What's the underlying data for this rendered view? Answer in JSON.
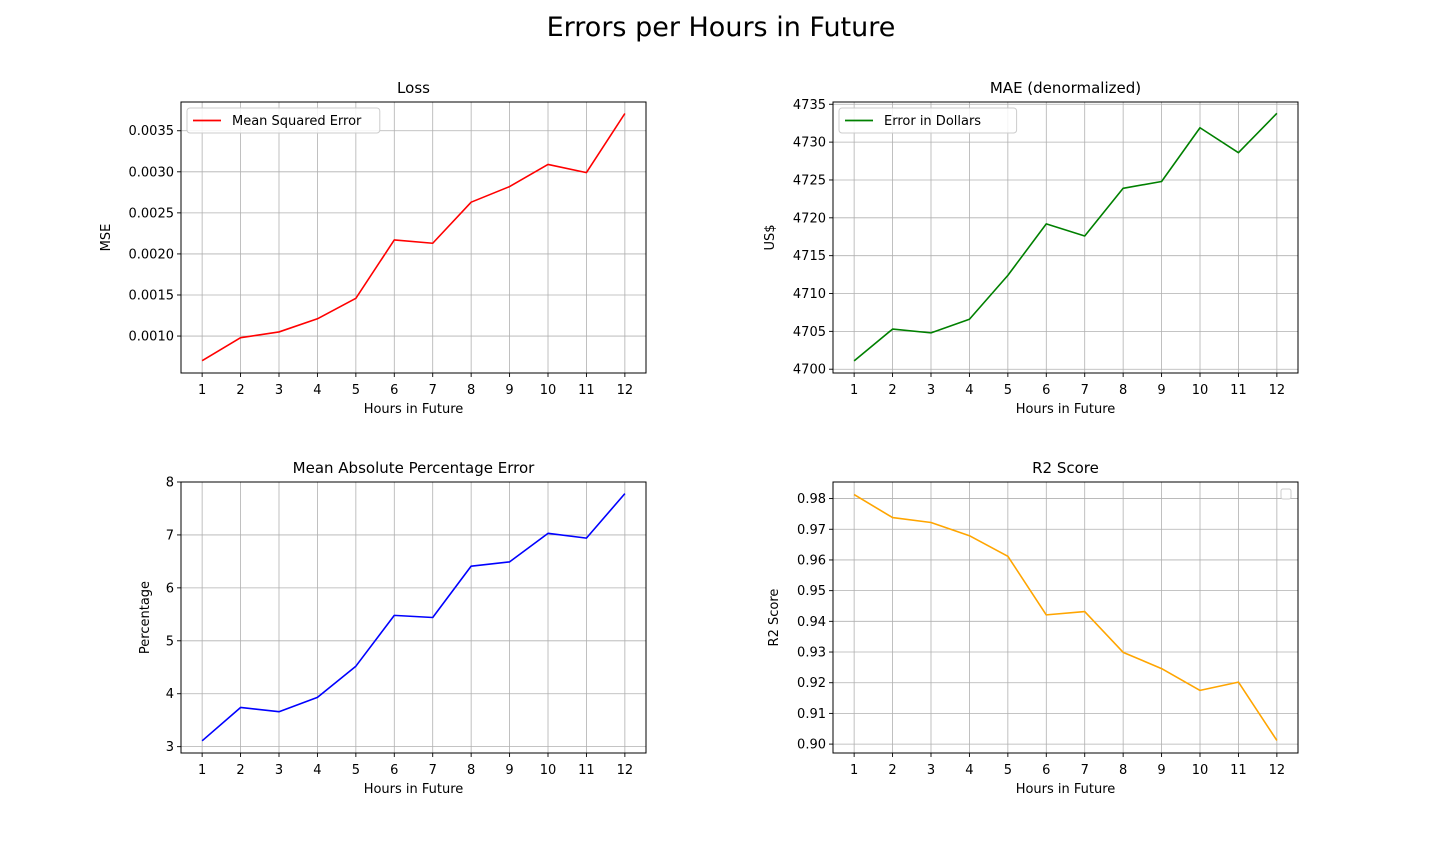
{
  "figure": {
    "title": "Errors per Hours in Future"
  },
  "chart_data": [
    {
      "type": "line",
      "title": "Loss",
      "xlabel": "Hours in Future",
      "ylabel": "MSE",
      "x": [
        1,
        2,
        3,
        4,
        5,
        6,
        7,
        8,
        9,
        10,
        11,
        12
      ],
      "xlim": [
        0.45,
        12.55
      ],
      "ylim": [
        0.00055,
        0.00385
      ],
      "yticks": [
        0.001,
        0.0015,
        0.002,
        0.0025,
        0.003,
        0.0035
      ],
      "ytick_labels": [
        "0.0010",
        "0.0015",
        "0.0020",
        "0.0025",
        "0.0030",
        "0.0035"
      ],
      "grid": true,
      "legend": "upper-left",
      "series": [
        {
          "name": "Mean Squared Error",
          "color": "#ff0000",
          "values": [
            0.0007,
            0.00098,
            0.00105,
            0.00121,
            0.00146,
            0.00217,
            0.00213,
            0.00263,
            0.00282,
            0.00309,
            0.00299,
            0.00371
          ]
        }
      ]
    },
    {
      "type": "line",
      "title": "MAE (denormalized)",
      "xlabel": "Hours in Future",
      "ylabel": "US$",
      "x": [
        1,
        2,
        3,
        4,
        5,
        6,
        7,
        8,
        9,
        10,
        11,
        12
      ],
      "xlim": [
        0.45,
        12.55
      ],
      "ylim": [
        4699.5,
        4735.3
      ],
      "yticks": [
        4700,
        4705,
        4710,
        4715,
        4720,
        4725,
        4730,
        4735
      ],
      "ytick_labels": [
        "4700",
        "4705",
        "4710",
        "4715",
        "4720",
        "4725",
        "4730",
        "4735"
      ],
      "grid": true,
      "legend": "upper-left",
      "series": [
        {
          "name": "Error in Dollars",
          "color": "#008000",
          "values": [
            4701.1,
            4705.3,
            4704.8,
            4706.6,
            4712.4,
            4719.2,
            4717.6,
            4723.9,
            4724.8,
            4731.9,
            4728.6,
            4733.8
          ]
        }
      ]
    },
    {
      "type": "line",
      "title": "Mean Absolute Percentage Error",
      "xlabel": "Hours in Future",
      "ylabel": "Percentage",
      "x": [
        1,
        2,
        3,
        4,
        5,
        6,
        7,
        8,
        9,
        10,
        11,
        12
      ],
      "xlim": [
        0.45,
        12.55
      ],
      "ylim": [
        2.88,
        8.0
      ],
      "yticks": [
        3,
        4,
        5,
        6,
        7,
        8
      ],
      "ytick_labels": [
        "3",
        "4",
        "5",
        "6",
        "7",
        "8"
      ],
      "grid": true,
      "legend": "none",
      "series": [
        {
          "color": "#0000ff",
          "values": [
            3.11,
            3.74,
            3.66,
            3.93,
            4.52,
            5.48,
            5.44,
            6.41,
            6.49,
            7.03,
            6.94,
            7.78
          ]
        }
      ]
    },
    {
      "type": "line",
      "title": "R2 Score",
      "xlabel": "Hours in Future",
      "ylabel": "R2 Score",
      "x": [
        1,
        2,
        3,
        4,
        5,
        6,
        7,
        8,
        9,
        10,
        11,
        12
      ],
      "xlim": [
        0.45,
        12.55
      ],
      "ylim": [
        0.8971,
        0.9854
      ],
      "yticks": [
        0.9,
        0.91,
        0.92,
        0.93,
        0.94,
        0.95,
        0.96,
        0.97,
        0.98
      ],
      "ytick_labels": [
        "0.90",
        "0.91",
        "0.92",
        "0.93",
        "0.94",
        "0.95",
        "0.96",
        "0.97",
        "0.98"
      ],
      "grid": true,
      "legend": "upper-right (empty)",
      "series": [
        {
          "color": "#ffa500",
          "values": [
            0.9813,
            0.9738,
            0.9722,
            0.9679,
            0.9612,
            0.9421,
            0.9432,
            0.9299,
            0.9246,
            0.9175,
            0.9202,
            0.9012
          ]
        }
      ]
    }
  ]
}
